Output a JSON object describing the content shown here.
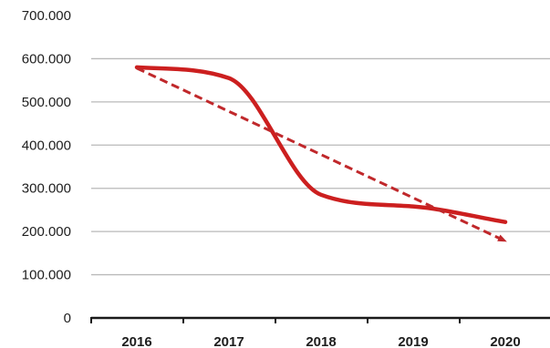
{
  "chart_data": {
    "type": "line",
    "categories": [
      "2016",
      "2017",
      "2018",
      "2019",
      "2020"
    ],
    "y_ticks": [
      "0",
      "100.000",
      "200.000",
      "300.000",
      "400.000",
      "500.000",
      "600.000",
      "700.000"
    ],
    "ylim": [
      0,
      700000
    ],
    "grid": true,
    "series": [
      {
        "kind": "actual",
        "style": "solid-smooth",
        "color": "#cc1f1f",
        "values": [
          580000,
          555000,
          285000,
          258000,
          222000
        ]
      },
      {
        "kind": "trend",
        "style": "dashed-arrow",
        "color": "#c0282b",
        "values": [
          578000,
          478000,
          378000,
          278000,
          178000
        ]
      }
    ]
  }
}
